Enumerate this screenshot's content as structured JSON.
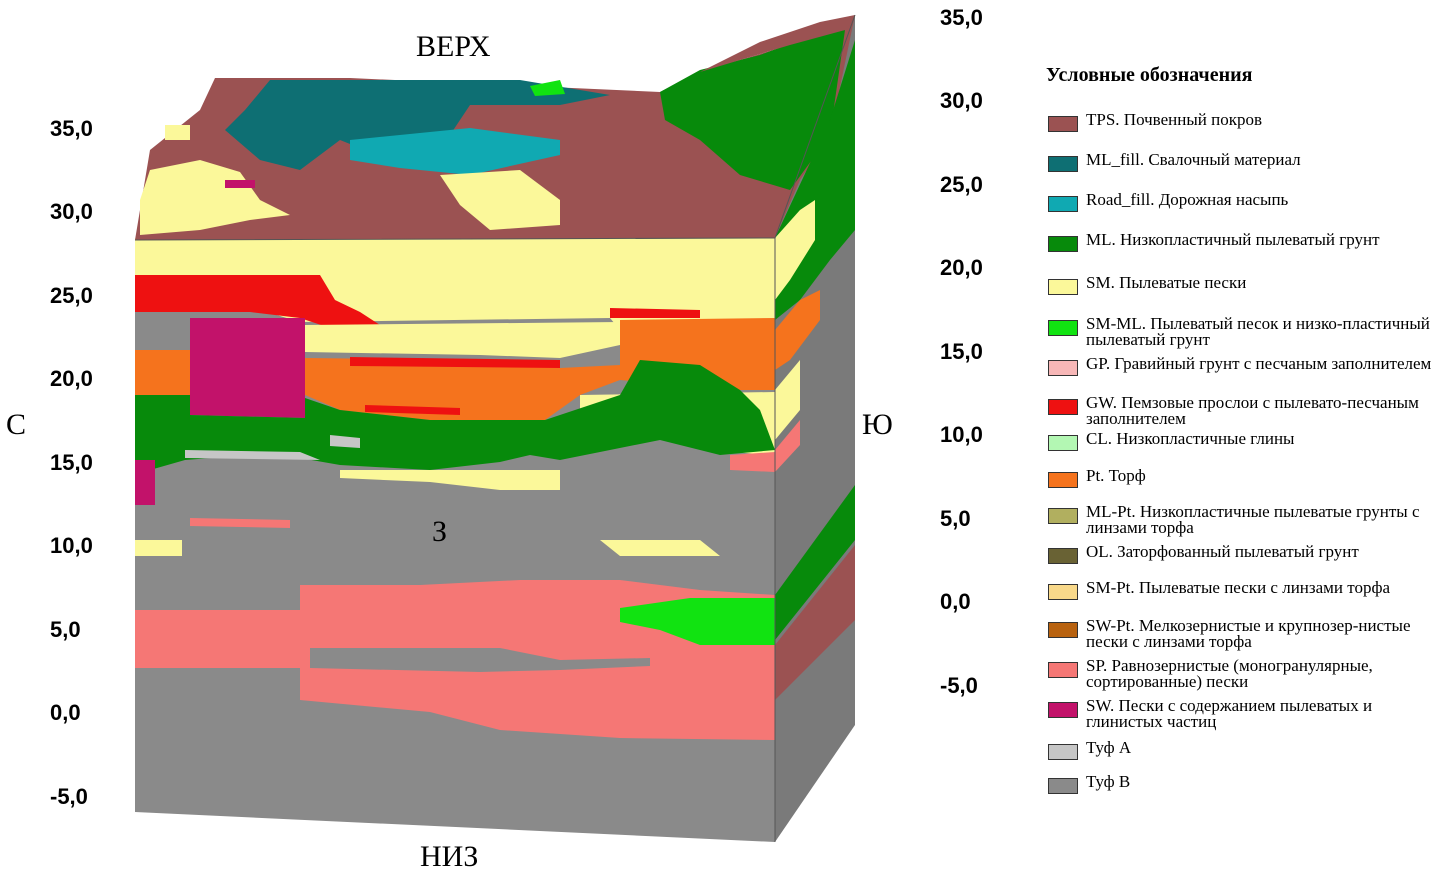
{
  "directions": {
    "top": "ВЕРХ",
    "bottom": "НИЗ",
    "north": "С",
    "south": "Ю",
    "west": "З"
  },
  "left_axis": [
    "35,0",
    "30,0",
    "25,0",
    "20,0",
    "15,0",
    "10,0",
    "5,0",
    "0,0",
    "-5,0"
  ],
  "right_axis": [
    "35,0",
    "30,0",
    "25,0",
    "20,0",
    "15,0",
    "10,0",
    "5,0",
    "0,0",
    "-5,0"
  ],
  "legend": {
    "title": "Условные обозначения",
    "items": [
      {
        "label": "TPS. Почвенный покров",
        "color": "#9b5252"
      },
      {
        "label": "ML_fill. Свалочный материал",
        "color": "#0e6f73"
      },
      {
        "label": "Road_fill. Дорожная насыпь",
        "color": "#10a9b2"
      },
      {
        "label": "ML. Низкопластичный пылеватый грунт",
        "color": "#078a0b"
      },
      {
        "label": "SM. Пылеватые пески",
        "color": "#fbf89a"
      },
      {
        "label": "SM-ML. Пылеватый песок и низко-пластичный пылеватый грунт",
        "color": "#11e311"
      },
      {
        "label": "GP. Гравийный грунт с песчаным заполнителем",
        "color": "#f7b7b7"
      },
      {
        "label": "GW. Пемзовые прослои с пылевато-песчаным заполнителем",
        "color": "#ee1111"
      },
      {
        "label": "CL. Низкопластичные глины",
        "color": "#b3f7b3"
      },
      {
        "label": "Pt. Торф",
        "color": "#f5731d"
      },
      {
        "label": "ML-Pt. Низкопластичные пылеватые грунты с линзами торфа",
        "color": "#b1af5f"
      },
      {
        "label": "OL. Заторфованный пылеватый грунт",
        "color": "#696234"
      },
      {
        "label": "SM-Pt. Пылеватые пески с линзами торфа",
        "color": "#f9d98a"
      },
      {
        "label": "SW-Pt. Мелкозернистые и крупнозер-нистые пески с линзами торфа",
        "color": "#b8620f"
      },
      {
        "label": "SP. Равнозернистые (моногранулярные, сортированные) пески",
        "color": "#f57775"
      },
      {
        "label": "SW. Пески с содержанием пылеватых и глинистых частиц",
        "color": "#c2126a"
      },
      {
        "label": "Туф A",
        "color": "#c6c6c6"
      },
      {
        "label": "Туф B",
        "color": "#8a8a8a"
      }
    ]
  }
}
